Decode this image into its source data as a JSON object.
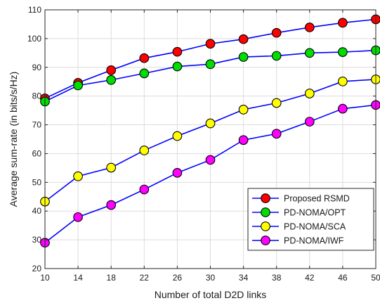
{
  "chart_data": {
    "type": "line",
    "title": "",
    "xlabel": "Number of total D2D links",
    "ylabel": "Average sum-rate (in bits/s/Hz)",
    "x": [
      10,
      14,
      18,
      22,
      26,
      30,
      34,
      38,
      42,
      46,
      50
    ],
    "xticks": [
      "10",
      "14",
      "18",
      "22",
      "26",
      "30",
      "34",
      "38",
      "42",
      "46",
      "50"
    ],
    "yticks": [
      "20",
      "30",
      "40",
      "50",
      "60",
      "70",
      "80",
      "90",
      "100",
      "110"
    ],
    "xlim": [
      10,
      50
    ],
    "ylim": [
      20,
      110
    ],
    "grid": true,
    "legend_position": "bottom-right",
    "line_color": "#0000ff",
    "series": [
      {
        "name": "Proposed RSMD",
        "color": "#ff0000",
        "values": [
          79.2,
          84.6,
          89.0,
          93.2,
          95.4,
          98.2,
          99.8,
          102.0,
          103.9,
          105.5,
          106.7
        ]
      },
      {
        "name": "PD-NOMA/OPT",
        "color": "#00dd00",
        "values": [
          78.1,
          83.7,
          85.6,
          87.9,
          90.3,
          91.1,
          93.6,
          94.0,
          95.0,
          95.3,
          95.9
        ]
      },
      {
        "name": "PD-NOMA/SCA",
        "color": "#ffff00",
        "values": [
          43.3,
          52.1,
          55.1,
          61.1,
          66.1,
          70.5,
          75.3,
          77.6,
          80.9,
          85.1,
          85.8
        ]
      },
      {
        "name": "PD-NOMA/IWF",
        "color": "#ff00ff",
        "values": [
          29.0,
          37.9,
          42.1,
          47.5,
          53.3,
          57.8,
          64.7,
          66.9,
          71.1,
          75.6,
          76.9
        ]
      }
    ]
  }
}
